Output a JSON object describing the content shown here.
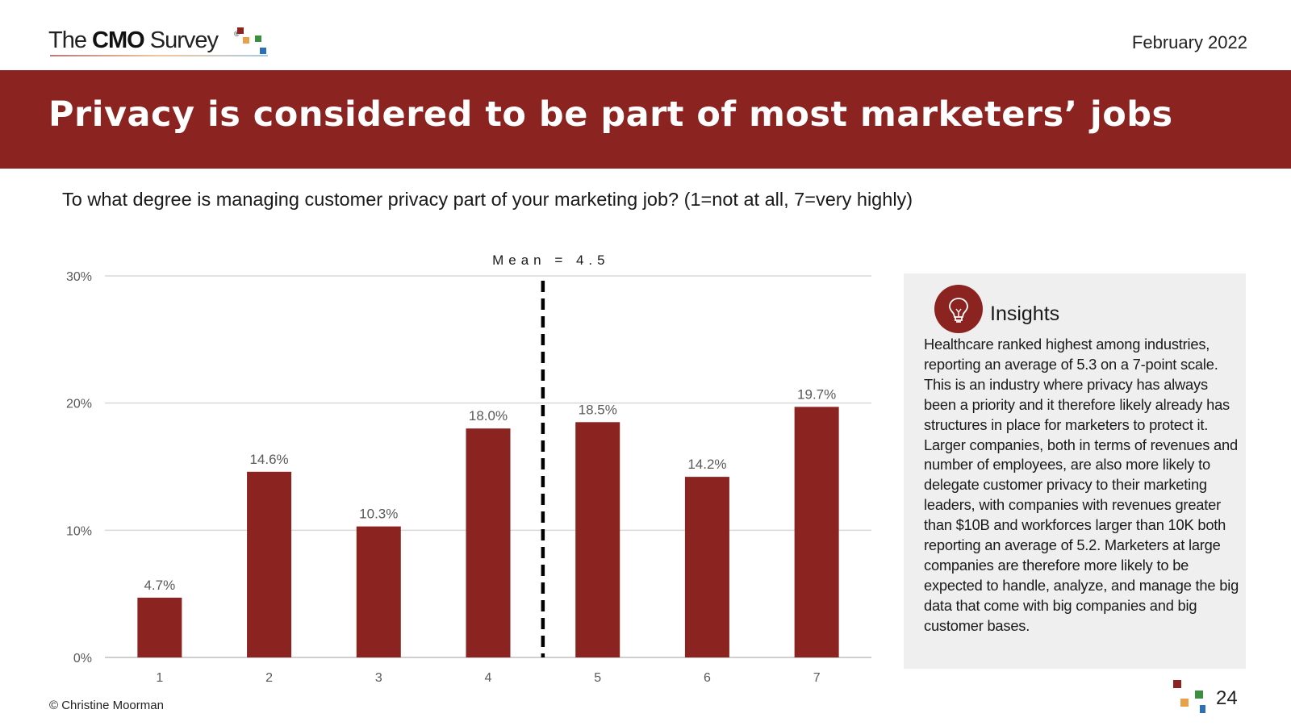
{
  "header": {
    "logo": {
      "prefix": "The",
      "bold": "CMO",
      "suffix": "Survey",
      "mark": "®"
    },
    "date": "February 2022"
  },
  "banner": {
    "title": "Privacy is considered to be part of most marketers’ jobs"
  },
  "question": "To what degree is managing customer privacy part of your marketing job? (1=not at all, 7=very highly)",
  "chart_data": {
    "type": "bar",
    "categories": [
      "1",
      "2",
      "3",
      "4",
      "5",
      "6",
      "7"
    ],
    "values": [
      4.7,
      14.6,
      10.3,
      18.0,
      18.5,
      14.2,
      19.7
    ],
    "data_labels": [
      "4.7%",
      "14.6%",
      "10.3%",
      "18.0%",
      "18.5%",
      "14.2%",
      "19.7%"
    ],
    "y_ticks": [
      0,
      10,
      20,
      30
    ],
    "y_tick_labels": [
      "0%",
      "10%",
      "20%",
      "30%"
    ],
    "ylim": [
      0,
      30
    ],
    "grid": true,
    "bar_color": "#8b2320",
    "mean": 4.5,
    "mean_label": "Mean = 4.5",
    "title": "",
    "xlabel": "",
    "ylabel": ""
  },
  "insights": {
    "icon": "lightbulb-icon",
    "title": "Insights",
    "body": "Healthcare ranked highest among industries, reporting an average of 5.3 on a 7-point scale. This is an industry where privacy has always been a priority and it therefore likely already has structures in place for marketers to protect it. Larger companies, both in terms of revenues and number of employees, are also more likely to delegate customer privacy to their marketing leaders, with companies with revenues greater than $10B and workforces larger than 10K both reporting an average of 5.2. Marketers at large companies are therefore more likely to be expected to handle, analyze, and manage the big data that come with big companies and big customer bases."
  },
  "footer": {
    "copyright": "© Christine Moorman",
    "page_number": "24"
  },
  "colors": {
    "brand_red": "#8b2320",
    "accent_orange": "#e8a04a",
    "accent_green": "#3e8e41",
    "accent_blue": "#2f6fb3",
    "panel_gray": "#efefef"
  }
}
